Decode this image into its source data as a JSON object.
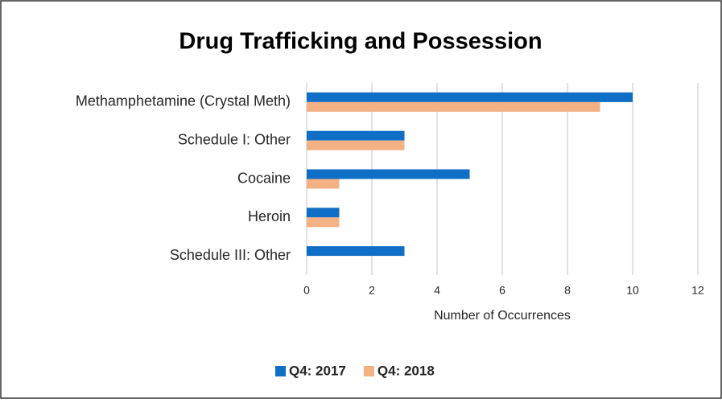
{
  "chart_data": {
    "type": "bar",
    "orientation": "horizontal",
    "title": "Drug Trafficking and Possession",
    "categories": [
      "Methamphetamine (Crystal Meth)",
      "Schedule I: Other",
      "Cocaine",
      "Heroin",
      "Schedule III: Other"
    ],
    "series": [
      {
        "name": "Q4: 2017",
        "color": "#0f6fc6",
        "values": [
          10,
          3,
          5,
          1,
          3
        ]
      },
      {
        "name": "Q4: 2018",
        "color": "#f4b183",
        "values": [
          9,
          3,
          1,
          1,
          0
        ]
      }
    ],
    "xlabel": "Number of Occurrences",
    "xlim": [
      0,
      12
    ],
    "xticks": [
      0,
      2,
      4,
      6,
      8,
      10,
      12
    ],
    "grid": true,
    "legend": "bottom"
  }
}
